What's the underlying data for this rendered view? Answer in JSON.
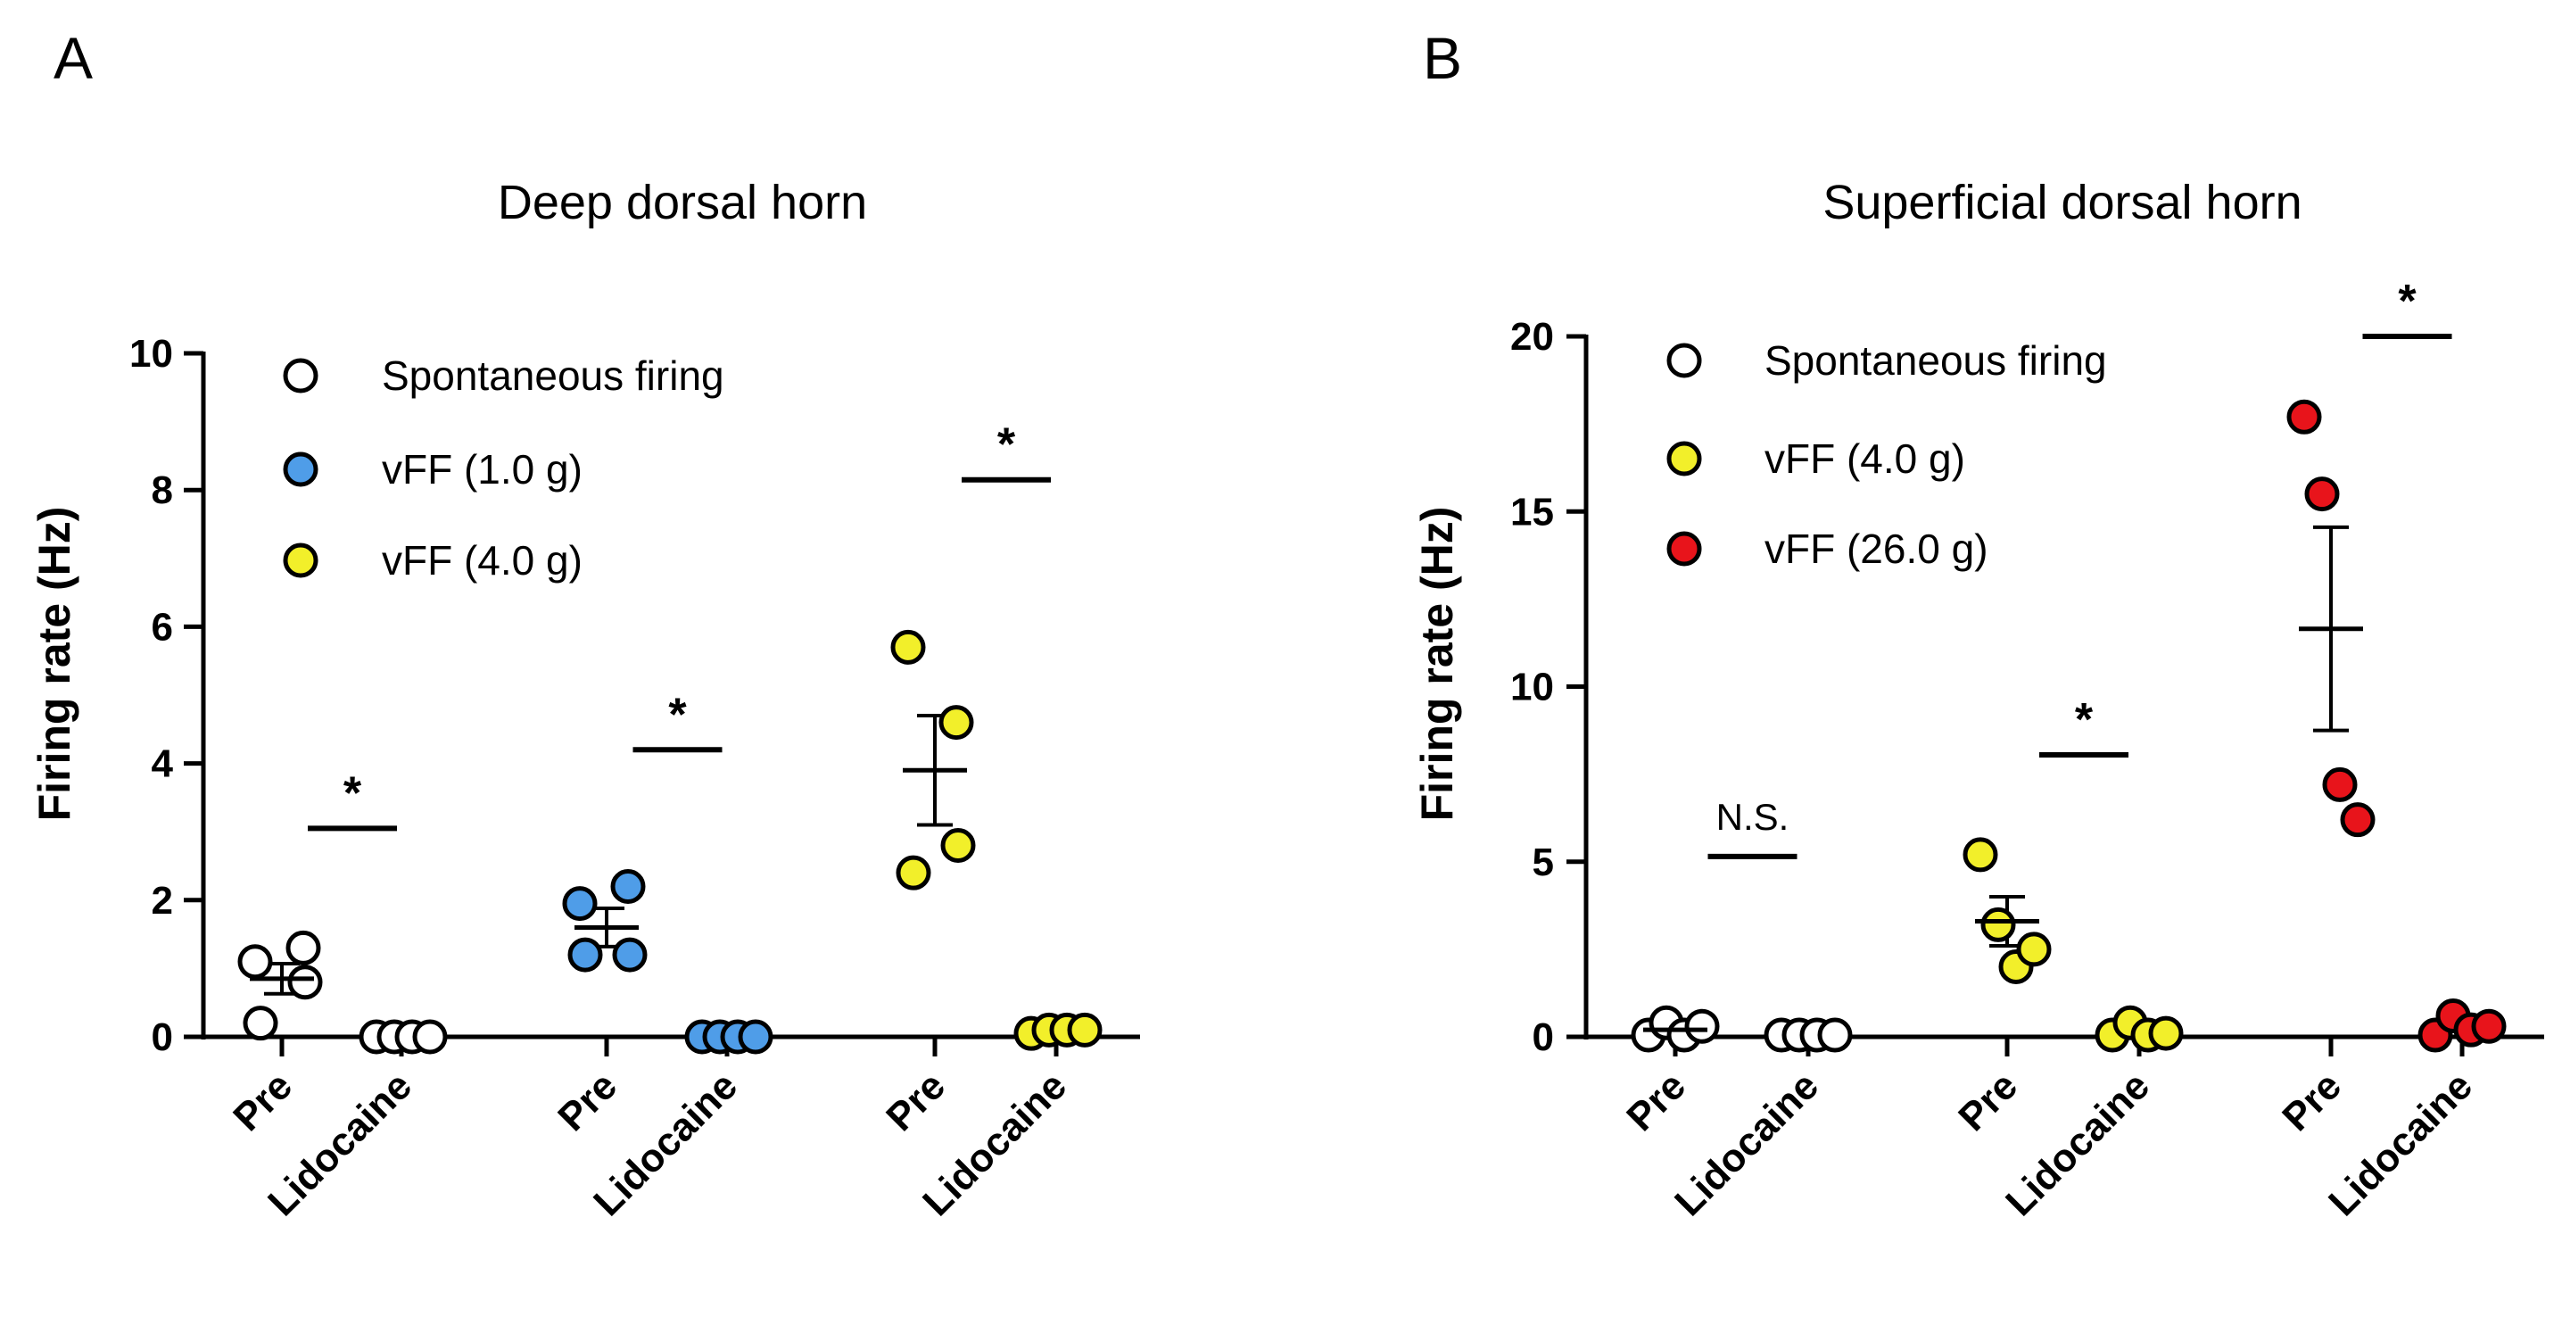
{
  "chart_data": [
    {
      "type": "scatter",
      "panel": "A",
      "title": "Deep dorsal horn",
      "xlabel": "",
      "ylabel": "Firing rate (Hz)",
      "ylim": [
        0,
        10
      ],
      "yticks": [
        0,
        2,
        4,
        6,
        8,
        10
      ],
      "legend": [
        {
          "label": "Spontaneous firing",
          "color": "#ffffff"
        },
        {
          "label": "vFF (1.0 g)",
          "color": "#4f9de8"
        },
        {
          "label": "vFF (4.0 g)",
          "color": "#f2ef2a"
        }
      ],
      "groups": [
        {
          "color": "#ffffff",
          "categories": [
            "Pre",
            "Lidocaine"
          ],
          "pre": {
            "values": [
              1.1,
              1.3,
              0.8,
              0.2
            ],
            "mean": 0.85,
            "sem": 0.22
          },
          "post": {
            "values": [
              0.0,
              0.0,
              0.0,
              0.0
            ]
          },
          "significance": "*",
          "sig_y": 3.05
        },
        {
          "color": "#4f9de8",
          "categories": [
            "Pre",
            "Lidocaine"
          ],
          "pre": {
            "values": [
              1.95,
              2.2,
              1.2,
              1.2
            ],
            "mean": 1.6,
            "sem": 0.28
          },
          "post": {
            "values": [
              0.0,
              0.0,
              0.0,
              0.0
            ]
          },
          "significance": "*",
          "sig_y": 4.2
        },
        {
          "color": "#f2ef2a",
          "categories": [
            "Pre",
            "Lidocaine"
          ],
          "pre": {
            "values": [
              5.7,
              4.6,
              2.8,
              2.4
            ],
            "mean": 3.9,
            "sem": 0.8
          },
          "post": {
            "values": [
              0.05,
              0.1,
              0.1,
              0.1
            ]
          },
          "significance": "*",
          "sig_y": 8.15
        }
      ]
    },
    {
      "type": "scatter",
      "panel": "B",
      "title": "Superficial dorsal horn",
      "xlabel": "",
      "ylabel": "Firing rate (Hz)",
      "ylim": [
        0,
        20
      ],
      "yticks": [
        0,
        5,
        10,
        15,
        20
      ],
      "legend": [
        {
          "label": "Spontaneous firing",
          "color": "#ffffff"
        },
        {
          "label": "vFF (4.0 g)",
          "color": "#f2ef2a"
        },
        {
          "label": "vFF (26.0 g)",
          "color": "#e8141b"
        }
      ],
      "groups": [
        {
          "color": "#ffffff",
          "categories": [
            "Pre",
            "Lidocaine"
          ],
          "pre": {
            "values": [
              0.05,
              0.4,
              0.05,
              0.3
            ],
            "mean": 0.2,
            "sem": 0.1
          },
          "post": {
            "values": [
              0.05,
              0.05,
              0.05,
              0.05
            ]
          },
          "significance": "N.S.",
          "sig_y": 5.15
        },
        {
          "color": "#f2ef2a",
          "categories": [
            "Pre",
            "Lidocaine"
          ],
          "pre": {
            "values": [
              5.2,
              3.2,
              2.0,
              2.5
            ],
            "mean": 3.3,
            "sem": 0.7
          },
          "post": {
            "values": [
              0.05,
              0.4,
              0.05,
              0.1
            ]
          },
          "significance": "*",
          "sig_y": 8.05
        },
        {
          "color": "#e8141b",
          "categories": [
            "Pre",
            "Lidocaine"
          ],
          "pre": {
            "values": [
              17.7,
              15.5,
              7.2,
              6.2
            ],
            "mean": 11.65,
            "sem": 2.9
          },
          "post": {
            "values": [
              0.05,
              0.6,
              0.2,
              0.3
            ]
          },
          "significance": "*",
          "sig_y": 20.0
        }
      ]
    }
  ]
}
